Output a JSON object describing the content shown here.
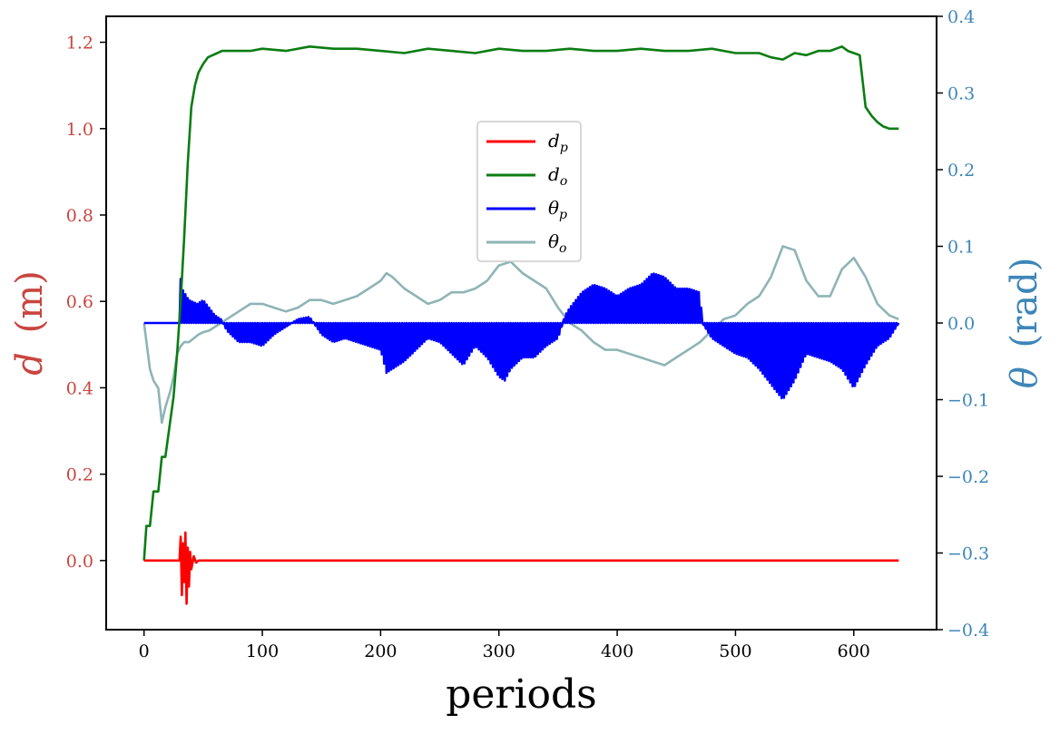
{
  "chart_data": {
    "type": "line",
    "xlabel": "periods",
    "ylabel_left": {
      "symbol": "d",
      "unit": "(m)"
    },
    "ylabel_right": {
      "symbol": "θ",
      "unit": "(rad)"
    },
    "xlim": [
      -32,
      670
    ],
    "ylim_left": [
      -0.16,
      1.26
    ],
    "ylim_right": [
      -0.4,
      0.4
    ],
    "x_ticks": [
      0,
      100,
      200,
      300,
      400,
      500,
      600
    ],
    "x_tick_labels": [
      "0",
      "100",
      "200",
      "300",
      "400",
      "500",
      "600"
    ],
    "left_ticks": [
      0.0,
      0.2,
      0.4,
      0.6,
      0.8,
      1.0,
      1.2
    ],
    "left_tick_labels": [
      "0.0",
      "0.2",
      "0.4",
      "0.6",
      "0.8",
      "1.0",
      "1.2"
    ],
    "right_ticks": [
      -0.4,
      -0.3,
      -0.2,
      -0.1,
      0.0,
      0.1,
      0.2,
      0.3,
      0.4
    ],
    "right_tick_labels": [
      "−0.4",
      "−0.3",
      "−0.2",
      "−0.1",
      "0.0",
      "0.1",
      "0.2",
      "0.3",
      "0.4"
    ],
    "grid": false,
    "legend_position": "upper-center",
    "colors": {
      "left_axis": "#c8453f",
      "right_axis": "#3d86b8",
      "d_p": "#ff0000",
      "d_o": "#0a7d12",
      "theta_p": "#0000ff",
      "theta_o": "#8fb4b5"
    },
    "series": [
      {
        "name": "d_p",
        "label_main": "d",
        "label_sub": "p",
        "axis": "left",
        "color": "#ff0000",
        "x": [
          0,
          30,
          31,
          32,
          33,
          34,
          35,
          36,
          37,
          38,
          39,
          40,
          42,
          44,
          46,
          100,
          200,
          300,
          400,
          500,
          600,
          638
        ],
        "y": [
          0.0,
          0.0,
          0.055,
          -0.08,
          0.04,
          -0.05,
          0.065,
          -0.1,
          0.03,
          -0.06,
          0.02,
          -0.02,
          0.01,
          -0.005,
          0.0,
          0.0,
          0.0,
          0.0,
          0.0,
          0.0,
          0.0,
          0.0
        ]
      },
      {
        "name": "d_o",
        "label_main": "d",
        "label_sub": "o",
        "axis": "left",
        "color": "#0a7d12",
        "x": [
          0,
          2,
          5,
          8,
          12,
          15,
          18,
          22,
          25,
          28,
          31,
          34,
          37,
          40,
          43,
          46,
          50,
          54,
          58,
          62,
          66,
          70,
          80,
          90,
          100,
          120,
          140,
          160,
          180,
          200,
          220,
          240,
          260,
          280,
          300,
          320,
          340,
          360,
          380,
          400,
          420,
          440,
          460,
          480,
          500,
          520,
          530,
          540,
          550,
          560,
          570,
          580,
          590,
          595,
          600,
          605,
          610,
          615,
          620,
          625,
          630,
          638
        ],
        "y": [
          0.0,
          0.08,
          0.08,
          0.16,
          0.16,
          0.24,
          0.24,
          0.32,
          0.38,
          0.48,
          0.6,
          0.75,
          0.92,
          1.05,
          1.1,
          1.13,
          1.15,
          1.165,
          1.17,
          1.175,
          1.18,
          1.18,
          1.18,
          1.18,
          1.185,
          1.18,
          1.19,
          1.185,
          1.185,
          1.18,
          1.175,
          1.185,
          1.18,
          1.175,
          1.185,
          1.18,
          1.18,
          1.185,
          1.18,
          1.18,
          1.185,
          1.18,
          1.18,
          1.185,
          1.175,
          1.175,
          1.165,
          1.16,
          1.175,
          1.17,
          1.18,
          1.18,
          1.19,
          1.18,
          1.175,
          1.17,
          1.05,
          1.03,
          1.015,
          1.005,
          1.0,
          1.0
        ]
      },
      {
        "name": "theta_p",
        "label_main": "θ",
        "label_sub": "p",
        "axis": "right",
        "color": "#0000ff",
        "baseline": 0.0,
        "oscillation_step": 2,
        "envelope_x": [
          0,
          29,
          30,
          32,
          38,
          45,
          50,
          55,
          60,
          65,
          70,
          80,
          90,
          100,
          110,
          120,
          130,
          140,
          150,
          160,
          170,
          180,
          190,
          200,
          205,
          210,
          220,
          230,
          240,
          250,
          260,
          270,
          280,
          290,
          300,
          305,
          310,
          320,
          330,
          340,
          350,
          356,
          360,
          370,
          380,
          390,
          400,
          410,
          420,
          430,
          440,
          450,
          460,
          470,
          472,
          480,
          490,
          500,
          510,
          520,
          530,
          540,
          550,
          560,
          570,
          580,
          590,
          600,
          610,
          620,
          630,
          638
        ],
        "envelope_y": [
          0.0,
          0.0,
          0.07,
          0.045,
          0.03,
          0.025,
          0.03,
          0.02,
          0.01,
          0.005,
          -0.01,
          -0.025,
          -0.025,
          -0.03,
          -0.015,
          -0.005,
          0.005,
          0.008,
          -0.015,
          -0.025,
          -0.02,
          -0.025,
          -0.03,
          -0.035,
          -0.065,
          -0.06,
          -0.05,
          -0.035,
          -0.02,
          -0.025,
          -0.04,
          -0.055,
          -0.03,
          -0.045,
          -0.07,
          -0.075,
          -0.06,
          -0.045,
          -0.045,
          -0.03,
          -0.02,
          0.01,
          0.02,
          0.04,
          0.05,
          0.045,
          0.035,
          0.045,
          0.05,
          0.065,
          0.06,
          0.045,
          0.045,
          0.04,
          0.0,
          -0.02,
          -0.03,
          -0.04,
          -0.045,
          -0.06,
          -0.08,
          -0.1,
          -0.075,
          -0.04,
          -0.045,
          -0.05,
          -0.06,
          -0.085,
          -0.055,
          -0.03,
          -0.02,
          0.0
        ]
      },
      {
        "name": "theta_o",
        "label_main": "θ",
        "label_sub": "o",
        "axis": "right",
        "color": "#8fb4b5",
        "x": [
          0,
          5,
          8,
          12,
          15,
          18,
          22,
          25,
          28,
          31,
          34,
          38,
          42,
          46,
          50,
          55,
          60,
          65,
          70,
          80,
          90,
          100,
          110,
          120,
          130,
          140,
          150,
          160,
          170,
          180,
          190,
          200,
          205,
          210,
          220,
          230,
          240,
          250,
          260,
          270,
          280,
          290,
          300,
          310,
          320,
          330,
          340,
          350,
          360,
          370,
          380,
          390,
          400,
          410,
          420,
          430,
          440,
          450,
          460,
          470,
          480,
          490,
          500,
          510,
          520,
          530,
          540,
          550,
          560,
          570,
          580,
          590,
          600,
          610,
          620,
          630,
          638
        ],
        "y": [
          0.0,
          -0.06,
          -0.075,
          -0.085,
          -0.13,
          -0.11,
          -0.09,
          -0.07,
          -0.04,
          -0.03,
          -0.025,
          -0.025,
          -0.02,
          -0.015,
          -0.012,
          -0.01,
          -0.005,
          0.0,
          0.005,
          0.015,
          0.025,
          0.025,
          0.02,
          0.015,
          0.02,
          0.03,
          0.03,
          0.025,
          0.03,
          0.035,
          0.045,
          0.055,
          0.065,
          0.06,
          0.045,
          0.035,
          0.025,
          0.03,
          0.04,
          0.04,
          0.045,
          0.055,
          0.075,
          0.08,
          0.065,
          0.055,
          0.045,
          0.02,
          0.0,
          -0.01,
          -0.025,
          -0.035,
          -0.035,
          -0.04,
          -0.045,
          -0.05,
          -0.055,
          -0.045,
          -0.035,
          -0.025,
          -0.01,
          0.005,
          0.01,
          0.025,
          0.035,
          0.06,
          0.1,
          0.095,
          0.055,
          0.035,
          0.035,
          0.07,
          0.085,
          0.06,
          0.025,
          0.01,
          0.005
        ]
      }
    ]
  }
}
